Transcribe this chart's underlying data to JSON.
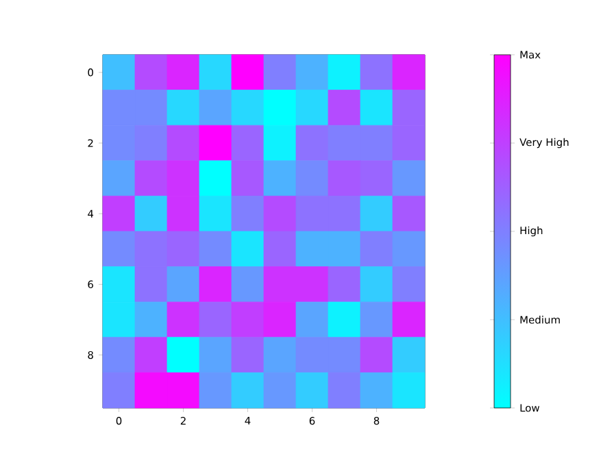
{
  "chart_data": {
    "type": "heatmap",
    "categories": [
      "0",
      null,
      "2",
      null,
      "4",
      null,
      "6",
      null,
      "8",
      null
    ],
    "y_categories": [
      "0",
      null,
      "2",
      null,
      "4",
      null,
      "6",
      null,
      "8",
      null
    ],
    "cells": [
      [
        0.25,
        0.7,
        0.85,
        0.15,
        1.0,
        0.5,
        0.3,
        0.05,
        0.55,
        0.85
      ],
      [
        0.45,
        0.45,
        0.15,
        0.35,
        0.15,
        0.0,
        0.15,
        0.7,
        0.1,
        0.6
      ],
      [
        0.45,
        0.5,
        0.7,
        1.0,
        0.6,
        0.05,
        0.55,
        0.5,
        0.5,
        0.6
      ],
      [
        0.35,
        0.7,
        0.8,
        0.0,
        0.65,
        0.3,
        0.45,
        0.65,
        0.6,
        0.4
      ],
      [
        0.75,
        0.2,
        0.8,
        0.1,
        0.5,
        0.7,
        0.55,
        0.55,
        0.2,
        0.65
      ],
      [
        0.45,
        0.55,
        0.6,
        0.45,
        0.1,
        0.6,
        0.3,
        0.3,
        0.5,
        0.4
      ],
      [
        0.1,
        0.55,
        0.35,
        0.85,
        0.4,
        0.8,
        0.8,
        0.6,
        0.2,
        0.5
      ],
      [
        0.1,
        0.3,
        0.8,
        0.6,
        0.75,
        0.85,
        0.35,
        0.05,
        0.4,
        0.85
      ],
      [
        0.45,
        0.75,
        0.0,
        0.35,
        0.6,
        0.35,
        0.45,
        0.45,
        0.7,
        0.2
      ],
      [
        0.5,
        0.95,
        0.95,
        0.4,
        0.2,
        0.4,
        0.2,
        0.5,
        0.3,
        0.1
      ]
    ],
    "clim": [
      0,
      1
    ],
    "cticks": [
      {
        "value": 0,
        "label": "Low"
      },
      {
        "value": 0.25,
        "label": "Medium"
      },
      {
        "value": 0.5,
        "label": "High"
      },
      {
        "value": 0.75,
        "label": "Very High"
      },
      {
        "value": 1,
        "label": "Max"
      }
    ]
  }
}
